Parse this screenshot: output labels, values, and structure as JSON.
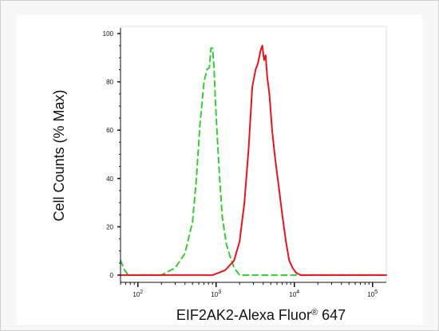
{
  "chart_data": {
    "type": "line",
    "x_scale": "log",
    "xlim": [
      60,
      150000
    ],
    "ylim": [
      -3,
      103
    ],
    "xlabel_main": "EIF2AK2-Alexa Fluor",
    "xlabel_sup": "®",
    "xlabel_tail": " 647",
    "ylabel": "Cell Counts (% Max)",
    "yticks": [
      "0",
      "20",
      "40",
      "60",
      "80",
      "100"
    ],
    "ytick_values": [
      0,
      20,
      40,
      60,
      80,
      100
    ],
    "xtick_base": [
      "10",
      "10",
      "10",
      "10"
    ],
    "xtick_exp": [
      "2",
      "3",
      "4",
      "5"
    ],
    "xtick_values": [
      100,
      1000,
      10000,
      100000
    ],
    "grid": false,
    "legend": "none",
    "series": [
      {
        "color": "#33cc33",
        "dash": true,
        "x": [
          60,
          68,
          75,
          90,
          120,
          200,
          300,
          400,
          500,
          560,
          620,
          700,
          760,
          820,
          860,
          900,
          940,
          980,
          1040,
          1120,
          1200,
          1350,
          1500,
          1700,
          2000,
          2600,
          4000,
          10000,
          150000
        ],
        "y": [
          6,
          2,
          0,
          0,
          0,
          0,
          3,
          9,
          22,
          40,
          62,
          80,
          85,
          86,
          94,
          94,
          86,
          72,
          56,
          38,
          24,
          13,
          8,
          3,
          0,
          0,
          0,
          0,
          0
        ]
      },
      {
        "color": "#e8141c",
        "dash": false,
        "x": [
          60,
          400,
          900,
          1300,
          1700,
          2000,
          2300,
          2600,
          2900,
          3200,
          3450,
          3700,
          3900,
          4100,
          4300,
          4500,
          4800,
          5200,
          5700,
          6300,
          7000,
          7800,
          8600,
          9500,
          10500,
          12000,
          15000,
          30000,
          150000
        ],
        "y": [
          0,
          0,
          0,
          2,
          6,
          14,
          30,
          52,
          78,
          85,
          88,
          93,
          95,
          89,
          91,
          82,
          75,
          60,
          48,
          37,
          25,
          14,
          6,
          3,
          1,
          0,
          0,
          0,
          0
        ]
      }
    ]
  }
}
